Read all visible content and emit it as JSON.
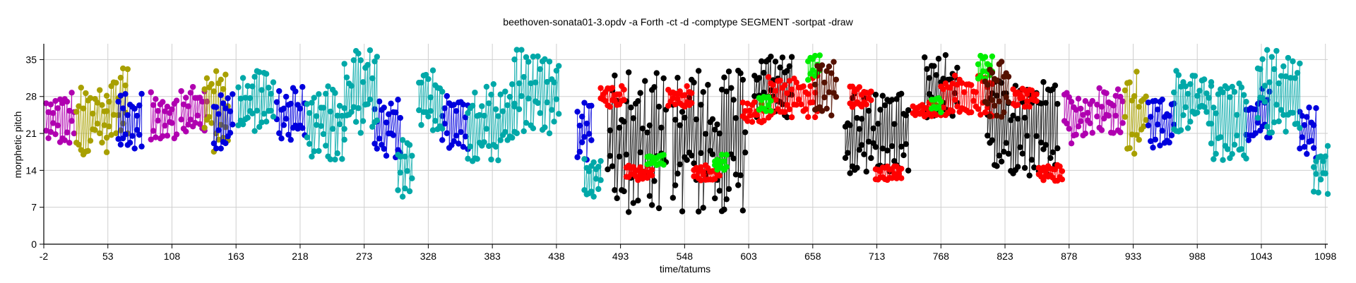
{
  "chart_data": {
    "type": "scatter",
    "title": "beethoven-sonata01-3.opdv  -a Forth -ct -d -comptype SEGMENT -sortpat -draw",
    "xlabel": "time/tatums",
    "ylabel": "morphetic pitch",
    "xlim": [
      -2,
      1100
    ],
    "ylim": [
      0,
      38
    ],
    "x_ticks": [
      -2,
      53,
      108,
      163,
      218,
      273,
      328,
      383,
      438,
      493,
      548,
      603,
      658,
      713,
      768,
      823,
      878,
      933,
      988,
      1043,
      1098
    ],
    "y_ticks": [
      0,
      7,
      14,
      21,
      28,
      35
    ],
    "grid": true,
    "legend": "none",
    "colors": {
      "magenta": "#b000b0",
      "olive": "#a8a000",
      "blue": "#0000dd",
      "teal": "#00a8a8",
      "black": "#000000",
      "red": "#ff0000",
      "green": "#00ee00",
      "darkred": "#551100"
    },
    "series": [
      {
        "color": "magenta",
        "segments": [
          {
            "x0": 0,
            "x1": 24,
            "yl": 19,
            "yh": 29
          },
          {
            "x0": 90,
            "x1": 112,
            "yl": 19,
            "yh": 29
          },
          {
            "x0": 116,
            "x1": 138,
            "yl": 21,
            "yh": 30
          },
          {
            "x0": 874,
            "x1": 898,
            "yl": 19,
            "yh": 29
          },
          {
            "x0": 902,
            "x1": 924,
            "yl": 21,
            "yh": 30
          }
        ]
      },
      {
        "color": "olive",
        "segments": [
          {
            "x0": 26,
            "x1": 52,
            "yl": 17,
            "yh": 31
          },
          {
            "x0": 52,
            "x1": 70,
            "yl": 18,
            "yh": 34
          },
          {
            "x0": 136,
            "x1": 156,
            "yl": 17,
            "yh": 33
          },
          {
            "x0": 926,
            "x1": 944,
            "yl": 17,
            "yh": 33
          }
        ]
      },
      {
        "color": "blue",
        "segments": [
          {
            "x0": 62,
            "x1": 82,
            "yl": 18,
            "yh": 29
          },
          {
            "x0": 144,
            "x1": 160,
            "yl": 18,
            "yh": 29
          },
          {
            "x0": 198,
            "x1": 222,
            "yl": 19,
            "yh": 30
          },
          {
            "x0": 282,
            "x1": 304,
            "yl": 16,
            "yh": 28
          },
          {
            "x0": 340,
            "x1": 362,
            "yl": 18,
            "yh": 29
          },
          {
            "x0": 456,
            "x1": 468,
            "yl": 16,
            "yh": 27
          },
          {
            "x0": 946,
            "x1": 968,
            "yl": 18,
            "yh": 29
          },
          {
            "x0": 1030,
            "x1": 1050,
            "yl": 19,
            "yh": 30
          },
          {
            "x0": 1076,
            "x1": 1090,
            "yl": 16,
            "yh": 27
          }
        ]
      },
      {
        "color": "teal",
        "segments": [
          {
            "x0": 165,
            "x1": 196,
            "yl": 21,
            "yh": 33
          },
          {
            "x0": 224,
            "x1": 256,
            "yl": 16,
            "yh": 31
          },
          {
            "x0": 256,
            "x1": 284,
            "yl": 21,
            "yh": 37
          },
          {
            "x0": 302,
            "x1": 314,
            "yl": 9,
            "yh": 20
          },
          {
            "x0": 320,
            "x1": 340,
            "yl": 21,
            "yh": 33
          },
          {
            "x0": 362,
            "x1": 402,
            "yl": 15,
            "yh": 31
          },
          {
            "x0": 402,
            "x1": 440,
            "yl": 21,
            "yh": 37
          },
          {
            "x0": 462,
            "x1": 476,
            "yl": 9,
            "yh": 17
          },
          {
            "x0": 968,
            "x1": 1000,
            "yl": 21,
            "yh": 33
          },
          {
            "x0": 1000,
            "x1": 1030,
            "yl": 15,
            "yh": 31
          },
          {
            "x0": 1040,
            "x1": 1076,
            "yl": 21,
            "yh": 37
          },
          {
            "x0": 1088,
            "x1": 1100,
            "yl": 9,
            "yh": 19
          }
        ]
      },
      {
        "color": "black",
        "segments": [
          {
            "x0": 482,
            "x1": 532,
            "yl": 6,
            "yh": 33
          },
          {
            "x0": 538,
            "x1": 600,
            "yl": 6,
            "yh": 33
          },
          {
            "x0": 608,
            "x1": 640,
            "yl": 24,
            "yh": 36
          },
          {
            "x0": 686,
            "x1": 740,
            "yl": 13,
            "yh": 29
          },
          {
            "x0": 754,
            "x1": 782,
            "yl": 24,
            "yh": 36
          },
          {
            "x0": 808,
            "x1": 868,
            "yl": 13,
            "yh": 31
          }
        ]
      },
      {
        "color": "red",
        "segments": [
          {
            "x0": 476,
            "x1": 496,
            "yl": 26,
            "yh": 30
          },
          {
            "x0": 498,
            "x1": 520,
            "yl": 12,
            "yh": 15
          },
          {
            "x0": 534,
            "x1": 554,
            "yl": 26,
            "yh": 30
          },
          {
            "x0": 556,
            "x1": 578,
            "yl": 12,
            "yh": 15
          },
          {
            "x0": 598,
            "x1": 616,
            "yl": 23,
            "yh": 27
          },
          {
            "x0": 620,
            "x1": 662,
            "yl": 24,
            "yh": 32
          },
          {
            "x0": 690,
            "x1": 708,
            "yl": 26,
            "yh": 30
          },
          {
            "x0": 712,
            "x1": 734,
            "yl": 12,
            "yh": 15
          },
          {
            "x0": 744,
            "x1": 764,
            "yl": 24,
            "yh": 27
          },
          {
            "x0": 768,
            "x1": 812,
            "yl": 24,
            "yh": 32
          },
          {
            "x0": 830,
            "x1": 850,
            "yl": 26,
            "yh": 30
          },
          {
            "x0": 852,
            "x1": 872,
            "yl": 12,
            "yh": 15
          }
        ]
      },
      {
        "color": "green",
        "segments": [
          {
            "x0": 516,
            "x1": 530,
            "yl": 15,
            "yh": 17
          },
          {
            "x0": 574,
            "x1": 584,
            "yl": 14,
            "yh": 17
          },
          {
            "x0": 612,
            "x1": 622,
            "yl": 25,
            "yh": 28
          },
          {
            "x0": 654,
            "x1": 664,
            "yl": 31,
            "yh": 36
          },
          {
            "x0": 760,
            "x1": 768,
            "yl": 25,
            "yh": 28
          },
          {
            "x0": 800,
            "x1": 812,
            "yl": 31,
            "yh": 36
          }
        ]
      },
      {
        "color": "darkred",
        "segments": [
          {
            "x0": 660,
            "x1": 678,
            "yl": 24,
            "yh": 35
          },
          {
            "x0": 806,
            "x1": 826,
            "yl": 24,
            "yh": 35
          }
        ]
      }
    ]
  }
}
